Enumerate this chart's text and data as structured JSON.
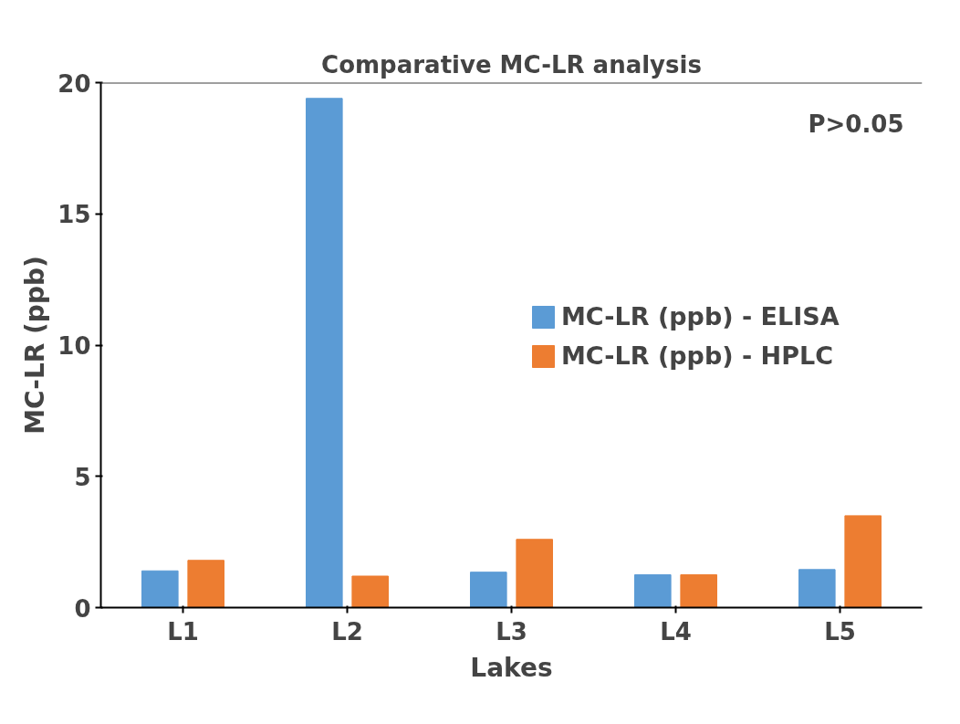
{
  "chart_data": {
    "type": "bar",
    "title": "Comparative MC-LR analysis",
    "xlabel": "Lakes",
    "ylabel": "MC-LR (ppb)",
    "categories": [
      "L1",
      "L2",
      "L3",
      "L4",
      "L5"
    ],
    "series": [
      {
        "name": "MC-LR (ppb) - ELISA",
        "color": "#5b9bd5",
        "values": [
          1.4,
          19.4,
          1.35,
          1.25,
          1.45
        ]
      },
      {
        "name": "MC-LR (ppb) - HPLC",
        "color": "#ed7d31",
        "values": [
          1.8,
          1.2,
          2.6,
          1.25,
          3.5
        ]
      }
    ],
    "ylim": [
      0,
      20
    ],
    "yticks": [
      0,
      5,
      10,
      15,
      20
    ],
    "grid": false,
    "legend": "right",
    "annotations": [
      "P>0.05"
    ]
  }
}
